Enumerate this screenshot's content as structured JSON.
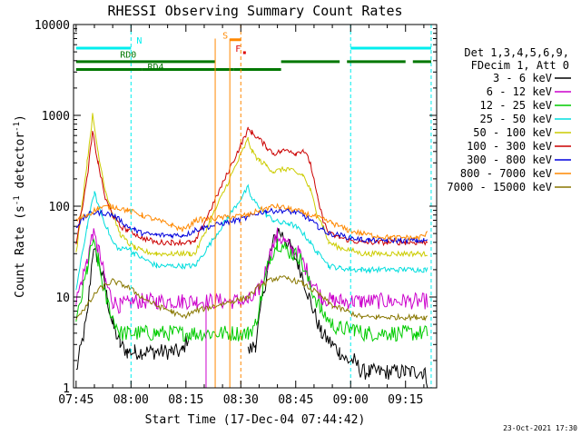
{
  "chart_data": {
    "type": "line",
    "title": "RHESSI Observing Summary Count Rates",
    "xlabel": "Start Time (17-Dec-04 07:44:42)",
    "ylabel_main": "Count Rate (s",
    "ylabel_sup1": "-1",
    "ylabel_mid": " detector",
    "ylabel_sup2": "-1",
    "ylabel_end": ")",
    "yscale": "log",
    "ylim": [
      1,
      10000
    ],
    "xlim_minutes": [
      -0.7,
      98.5
    ],
    "x_ticks": [
      {
        "t": 0,
        "label": "07:45"
      },
      {
        "t": 15,
        "label": "08:00"
      },
      {
        "t": 30,
        "label": "08:15"
      },
      {
        "t": 45,
        "label": "08:30"
      },
      {
        "t": 60,
        "label": "08:45"
      },
      {
        "t": 75,
        "label": "09:00"
      },
      {
        "t": 90,
        "label": "09:15"
      }
    ],
    "y_ticks": [
      {
        "v": 1,
        "label": "1"
      },
      {
        "v": 10,
        "label": "10"
      },
      {
        "v": 100,
        "label": "100"
      },
      {
        "v": 1000,
        "label": "1000"
      },
      {
        "v": 10000,
        "label": "10000"
      }
    ],
    "legend_position": "right",
    "legend_header": [
      "Det 1,3,4,5,6,9,",
      "FDecim 1, Att 0"
    ],
    "series": [
      {
        "name": "3 - 6 keV",
        "color": "#000000",
        "x": [
          0,
          3,
          4.5,
          6,
          8,
          10,
          12,
          14,
          16,
          18,
          22,
          26,
          29,
          31,
          33,
          38,
          41,
          43,
          45,
          47,
          49,
          51,
          53,
          55,
          57,
          59,
          61,
          64,
          67,
          70,
          72,
          74,
          76,
          78,
          80,
          85,
          90,
          93,
          95,
          96
        ],
        "y": [
          1.5,
          6,
          30,
          28,
          12,
          5,
          3,
          2.5,
          2.5,
          2.5,
          2.5,
          2.5,
          2.5,
          4,
          null,
          null,
          null,
          null,
          null,
          2.5,
          3,
          10,
          30,
          55,
          45,
          32,
          22,
          9,
          4,
          3,
          2.5,
          2,
          2,
          1.5,
          1.5,
          1.5,
          1.5,
          1.5,
          1.5,
          1.2
        ]
      },
      {
        "name": "6 - 12 keV",
        "color": "#cc00cc",
        "x": [
          0,
          3,
          4.5,
          6,
          8,
          10,
          12,
          14,
          16,
          18,
          22,
          26,
          29,
          31,
          33,
          47,
          49,
          51,
          53,
          55,
          57,
          59,
          61,
          64,
          67,
          70,
          72,
          74,
          76,
          78,
          80,
          85,
          90,
          93,
          95,
          96
        ],
        "y": [
          9,
          25,
          50,
          35,
          15,
          9,
          8,
          8.5,
          9,
          9,
          9,
          9,
          9,
          9,
          9,
          9,
          10,
          15,
          30,
          48,
          40,
          33,
          30,
          16,
          10,
          9,
          9,
          9,
          9,
          9,
          9,
          9,
          9,
          9,
          9,
          9
        ]
      },
      {
        "name": "12 - 25 keV",
        "color": "#00cc00",
        "x": [
          0,
          3,
          4.5,
          6,
          8,
          10,
          12,
          14,
          16,
          18,
          22,
          26,
          29,
          31,
          33,
          47,
          49,
          51,
          53,
          55,
          57,
          59,
          61,
          64,
          67,
          70,
          72,
          74,
          76,
          78,
          80,
          85,
          90,
          93,
          95,
          96
        ],
        "y": [
          5,
          20,
          40,
          25,
          10,
          6,
          4,
          4,
          4,
          4,
          4,
          4,
          4,
          4,
          4,
          4,
          5,
          12,
          28,
          40,
          35,
          30,
          28,
          13,
          7,
          5,
          4.5,
          4.5,
          4.5,
          4,
          4,
          4,
          4,
          4,
          4,
          4
        ]
      },
      {
        "name": "25 - 50 keV",
        "color": "#00dddd",
        "x": [
          0,
          3,
          5,
          7,
          10,
          12,
          14,
          16,
          18,
          22,
          26,
          29,
          31,
          32.5,
          47,
          48,
          50,
          52,
          54,
          56,
          58,
          60,
          62,
          64,
          66,
          67.5,
          69,
          72,
          75,
          78,
          80,
          85,
          90,
          93,
          95,
          96
        ],
        "y": [
          12,
          60,
          140,
          80,
          40,
          33,
          35,
          30,
          27,
          22,
          22,
          22,
          22,
          22,
          160,
          120,
          100,
          80,
          70,
          65,
          65,
          60,
          50,
          40,
          30,
          28,
          22,
          21,
          20,
          20,
          20,
          20,
          20,
          20,
          20,
          20
        ]
      },
      {
        "name": "50 - 100 keV",
        "color": "#cccc00",
        "x": [
          0,
          3,
          4.5,
          6,
          8,
          10,
          12,
          14,
          16,
          18,
          22,
          26,
          29,
          31,
          32.5,
          47,
          48,
          50,
          52,
          54,
          56,
          58,
          60,
          62,
          64,
          66,
          67.5,
          69,
          72,
          75,
          78,
          80,
          85,
          90,
          93,
          95,
          96
        ],
        "y": [
          30,
          300,
          1000,
          400,
          150,
          80,
          50,
          40,
          35,
          32,
          30,
          30,
          30,
          30,
          30,
          550,
          400,
          320,
          280,
          240,
          250,
          260,
          230,
          220,
          150,
          80,
          60,
          40,
          35,
          33,
          30,
          30,
          30,
          30,
          30,
          30,
          30
        ]
      },
      {
        "name": "100 - 300 keV",
        "color": "#cc0000",
        "x": [
          0,
          3,
          4.5,
          6,
          8,
          10,
          12,
          14,
          16,
          18,
          22,
          26,
          29,
          31,
          32.5,
          47,
          48,
          50,
          52,
          54,
          56,
          58,
          60,
          62,
          64,
          66,
          67.5,
          69,
          72,
          75,
          78,
          80,
          85,
          90,
          93,
          95,
          96
        ],
        "y": [
          40,
          200,
          650,
          300,
          120,
          80,
          60,
          55,
          50,
          45,
          40,
          40,
          40,
          40,
          40,
          700,
          650,
          550,
          450,
          380,
          400,
          420,
          380,
          420,
          300,
          120,
          70,
          50,
          45,
          42,
          40,
          40,
          40,
          40,
          40,
          40,
          40
        ]
      },
      {
        "name": "300 - 800 keV",
        "color": "#0000dd",
        "x": [
          0,
          3,
          5,
          7,
          10,
          12,
          14,
          16,
          18,
          22,
          26,
          29,
          31,
          32.5,
          47,
          48,
          50,
          52,
          54,
          56,
          58,
          60,
          62,
          64,
          66,
          67.5,
          69,
          72,
          75,
          78,
          80,
          85,
          90,
          93,
          95,
          96
        ],
        "y": [
          60,
          80,
          85,
          85,
          80,
          70,
          60,
          55,
          50,
          48,
          48,
          48,
          50,
          55,
          75,
          80,
          85,
          88,
          88,
          90,
          88,
          85,
          80,
          70,
          60,
          55,
          50,
          48,
          45,
          43,
          42,
          42,
          42,
          42,
          42,
          42
        ]
      },
      {
        "name": "800 - 7000 keV",
        "color": "#ff8800",
        "x": [
          0,
          3,
          6,
          10,
          14,
          18,
          22,
          26,
          29,
          31,
          32.5,
          47,
          50,
          54,
          58,
          62,
          66,
          70,
          74,
          78,
          82,
          86,
          90,
          93,
          95,
          96
        ],
        "y": [
          70,
          80,
          95,
          100,
          90,
          80,
          70,
          62,
          55,
          60,
          70,
          80,
          90,
          100,
          95,
          85,
          75,
          65,
          55,
          50,
          47,
          45,
          45,
          45,
          47,
          50
        ]
      },
      {
        "name": "7000 - 15000 keV",
        "color": "#887700",
        "x": [
          0,
          3,
          6,
          10,
          14,
          18,
          22,
          26,
          29,
          31,
          32.5,
          47,
          50,
          54,
          58,
          62,
          66,
          70,
          74,
          78,
          82,
          86,
          90,
          93,
          95,
          96
        ],
        "y": [
          6,
          8,
          12,
          15,
          13,
          10,
          8,
          7,
          6,
          6.5,
          7,
          10,
          13,
          16,
          16,
          14,
          11,
          8,
          7,
          6,
          6,
          6,
          6,
          6,
          6,
          6
        ]
      }
    ],
    "flags": [
      {
        "label": "N",
        "color": "#00eeee",
        "segments": [
          [
            0,
            15
          ],
          [
            75,
            97
          ]
        ],
        "level": 5500,
        "dashes": [
          15,
          75,
          97
        ]
      },
      {
        "label": "RD0",
        "color": "#007700",
        "segments": [
          [
            0,
            38
          ],
          [
            56,
            72
          ],
          [
            74,
            90
          ],
          [
            92,
            97
          ]
        ],
        "level": 3900,
        "dashes": []
      },
      {
        "label": "RD4",
        "color": "#007700",
        "segments": [
          [
            0,
            18
          ],
          [
            18,
            43
          ],
          [
            43,
            56
          ]
        ],
        "level": 3200,
        "dashes": []
      },
      {
        "label": "S",
        "color": "#ff8800",
        "segments": [
          [
            42,
            45
          ]
        ],
        "level": 6800,
        "dashes": [
          45
        ]
      },
      {
        "label": "F",
        "color": "#dd0000",
        "segments": [],
        "level": 5000,
        "dashes": []
      }
    ],
    "timestamp": "23-Oct-2021 17:30"
  }
}
